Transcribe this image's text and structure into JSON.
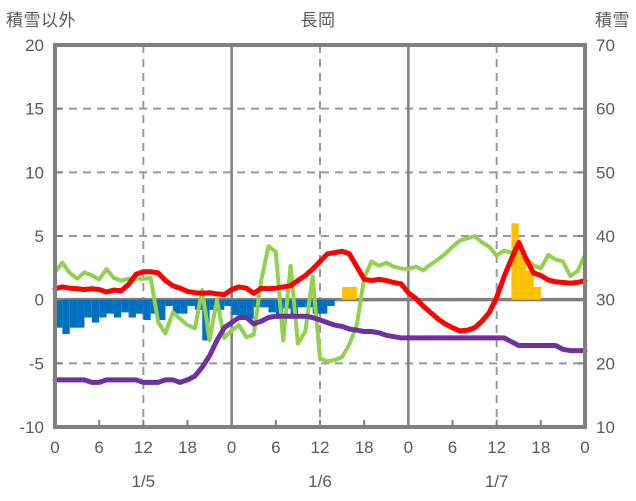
{
  "header": {
    "left_axis_title": "積雪以外",
    "station_title": "長岡",
    "right_axis_title": "積雪"
  },
  "chart_data": {
    "type": "line",
    "title": "長岡",
    "x_unit": "hour",
    "x_range_hours": [
      0,
      72
    ],
    "x_tick_step_hours": 6,
    "x_tick_labels": [
      "0",
      "6",
      "12",
      "18",
      "0",
      "6",
      "12",
      "18",
      "0",
      "6",
      "12",
      "18",
      "0"
    ],
    "date_labels": [
      {
        "label": "1/5",
        "hour": 12
      },
      {
        "label": "1/6",
        "hour": 36
      },
      {
        "label": "1/7",
        "hour": 60
      }
    ],
    "left_axis": {
      "title": "積雪以外",
      "range": [
        -10,
        20
      ],
      "ticks": [
        20,
        15,
        10,
        5,
        0,
        -5,
        -10
      ]
    },
    "right_axis": {
      "title": "積雪",
      "range": [
        10,
        70
      ],
      "ticks": [
        70,
        60,
        50,
        40,
        30,
        20,
        10
      ]
    },
    "grid": {
      "h_dashed_left_values": [
        15,
        10,
        5,
        -5
      ],
      "h_solid_left_values": [
        0
      ],
      "v_dashed_hours": [
        12,
        36,
        60
      ],
      "v_solid_hours": [
        24,
        48
      ]
    },
    "colors": {
      "red": "#FF0000",
      "green": "#92D050",
      "purple": "#7030A0",
      "blue": "#0070C0",
      "orange": "#FFC000",
      "grid": "#808080",
      "grid_dash": "#999999",
      "text": "#595959"
    },
    "series": [
      {
        "name": "blue-bars",
        "render": "bar",
        "axis": "left",
        "color_key": "blue",
        "start_hour": 0,
        "values": [
          -2.2,
          -2.7,
          -2.2,
          -2.2,
          -1.4,
          -1.8,
          -1.4,
          -1.1,
          -1.4,
          -1.0,
          -1.4,
          -1.1,
          -1.6,
          -1.1,
          -1.6,
          -0.5,
          -1.1,
          -1.1,
          -0.5,
          -0.8,
          -3.2,
          -0.8,
          -0.8,
          -0.5,
          -1.2,
          -1.5,
          -1.5,
          -0.6,
          -0.6,
          -1.0,
          -1.5,
          -0.7,
          -1.4,
          -0.6,
          -0.6,
          -1.1,
          -1.1,
          -0.5
        ]
      },
      {
        "name": "green-line",
        "render": "line",
        "axis": "right",
        "color_key": "green",
        "width": 4,
        "start_hour": 0,
        "values": [
          34.3,
          35.8,
          34.2,
          33.3,
          34.3,
          33.8,
          33.2,
          34.8,
          33.4,
          33.0,
          33.3,
          33.3,
          33.3,
          33.4,
          26.5,
          24.7,
          28.0,
          27.0,
          26.0,
          25.5,
          31.5,
          23.6,
          30.0,
          24.0,
          25.2,
          26.0,
          24.1,
          24.5,
          33.0,
          38.4,
          37.5,
          23.6,
          35.3,
          23.1,
          25.0,
          33.6,
          20.8,
          20.3,
          20.5,
          21.0,
          23.0,
          26.0,
          33.5,
          36.0,
          35.3,
          35.8,
          35.2,
          34.9,
          34.8,
          35.2,
          34.6,
          35.5,
          36.3,
          37.2,
          38.3,
          39.3,
          39.6,
          40.0,
          39.0,
          38.3,
          36.9,
          37.7,
          37.4,
          37.2,
          36.5,
          35.4,
          34.9,
          37.0,
          36.3,
          36.0,
          33.7,
          34.5,
          37.0
        ]
      },
      {
        "name": "orange-bars",
        "render": "sparse-bar",
        "axis": "left",
        "color_key": "orange",
        "points": [
          {
            "hour": 39,
            "value": 1.0
          },
          {
            "hour": 40,
            "value": 1.0
          },
          {
            "hour": 62,
            "value": 6.0
          },
          {
            "hour": 63,
            "value": 3.5
          },
          {
            "hour": 64,
            "value": 2.3
          },
          {
            "hour": 65,
            "value": 1.0
          }
        ]
      },
      {
        "name": "purple-line",
        "render": "line",
        "axis": "left",
        "color_key": "purple",
        "width": 5,
        "start_hour": 0,
        "values": [
          -6.3,
          -6.3,
          -6.3,
          -6.3,
          -6.3,
          -6.5,
          -6.5,
          -6.3,
          -6.3,
          -6.3,
          -6.3,
          -6.3,
          -6.5,
          -6.5,
          -6.5,
          -6.3,
          -6.3,
          -6.5,
          -6.3,
          -6.0,
          -5.3,
          -4.4,
          -3.2,
          -2.2,
          -1.8,
          -1.4,
          -1.4,
          -1.9,
          -1.7,
          -1.4,
          -1.3,
          -1.3,
          -1.3,
          -1.3,
          -1.3,
          -1.4,
          -1.6,
          -1.8,
          -2.0,
          -2.1,
          -2.3,
          -2.4,
          -2.5,
          -2.5,
          -2.6,
          -2.8,
          -2.9,
          -3.0,
          -3.0,
          -3.0,
          -3.0,
          -3.0,
          -3.0,
          -3.0,
          -3.0,
          -3.0,
          -3.0,
          -3.0,
          -3.0,
          -3.0,
          -3.0,
          -3.0,
          -3.3,
          -3.6,
          -3.6,
          -3.6,
          -3.6,
          -3.6,
          -3.6,
          -3.9,
          -4.0,
          -4.0,
          -4.0
        ]
      },
      {
        "name": "red-line",
        "render": "line",
        "axis": "left",
        "color_key": "red",
        "width": 5,
        "start_hour": 0,
        "values": [
          0.85,
          1.0,
          0.9,
          0.85,
          0.8,
          0.85,
          0.8,
          0.6,
          0.75,
          0.7,
          1.2,
          2.0,
          2.2,
          2.2,
          2.1,
          1.5,
          1.1,
          0.9,
          0.65,
          0.55,
          0.5,
          0.55,
          0.45,
          0.4,
          0.8,
          1.0,
          0.9,
          0.5,
          0.9,
          0.85,
          0.9,
          1.0,
          1.1,
          1.5,
          1.9,
          2.4,
          3.0,
          3.6,
          3.7,
          3.8,
          3.6,
          2.6,
          1.6,
          1.5,
          1.6,
          1.5,
          1.35,
          1.25,
          0.55,
          0.1,
          -0.5,
          -1.0,
          -1.5,
          -1.9,
          -2.2,
          -2.45,
          -2.4,
          -2.2,
          -1.7,
          -1.0,
          0.2,
          1.8,
          3.2,
          4.5,
          3.2,
          2.1,
          1.9,
          1.55,
          1.4,
          1.35,
          1.3,
          1.35,
          1.5
        ]
      }
    ]
  }
}
